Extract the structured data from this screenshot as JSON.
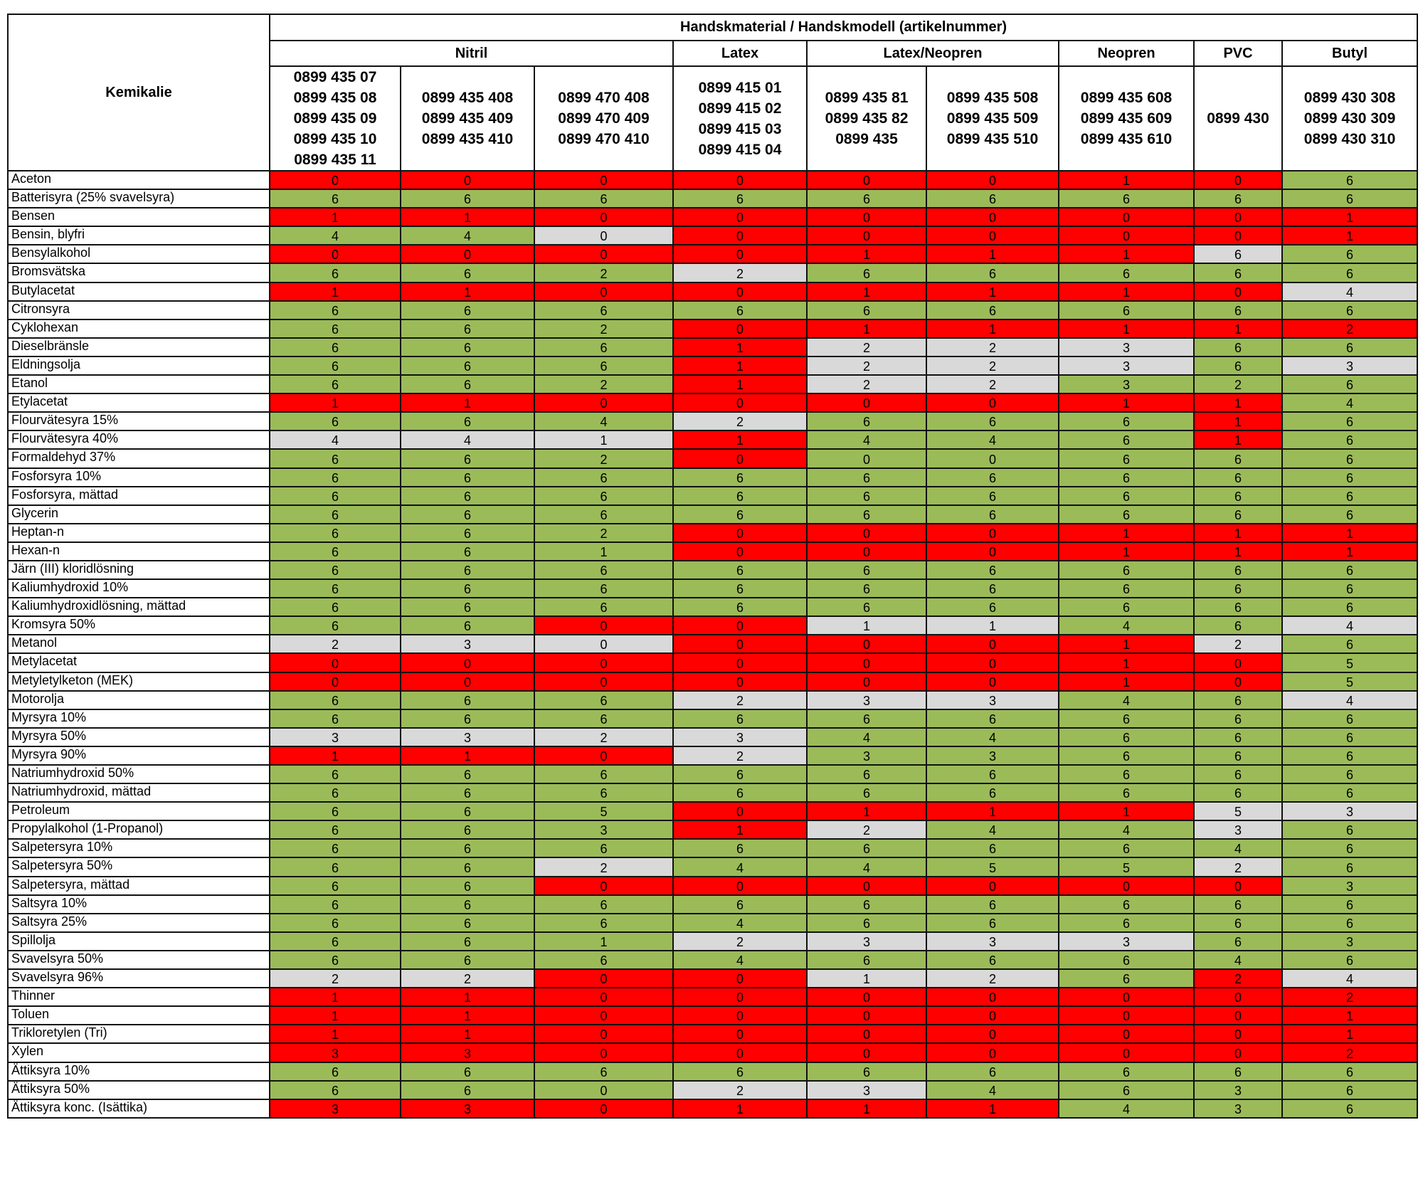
{
  "header": {
    "chemical_label": "Kemikalie",
    "group_title": "Handskmaterial / Handskmodell (artikelnummer)",
    "materials": [
      {
        "label": "Nitril",
        "span": 3
      },
      {
        "label": "Latex",
        "span": 1
      },
      {
        "label": "Latex/Neopren",
        "span": 2
      },
      {
        "label": "Neopren",
        "span": 1
      },
      {
        "label": "PVC",
        "span": 1
      },
      {
        "label": "Butyl",
        "span": 1
      }
    ],
    "article_numbers": [
      [
        "0899 435 07",
        "0899 435 08",
        "0899 435 09",
        "0899 435 10",
        "0899 435 11"
      ],
      [
        "0899 435 408",
        "0899 435 409",
        "0899 435 410"
      ],
      [
        "0899 470 408",
        "0899 470 409",
        "0899 470 410"
      ],
      [
        "0899 415 01",
        "0899 415 02",
        "0899 415 03",
        "0899 415 04"
      ],
      [
        "0899 435 81",
        "0899 435 82",
        "0899 435"
      ],
      [
        "0899 435 508",
        "0899 435 509",
        "0899 435 510"
      ],
      [
        "0899 435 608",
        "0899 435 609",
        "0899 435 610"
      ],
      [
        "0899 430"
      ],
      [
        "0899 430 308",
        "0899 430 309",
        "0899 430 310"
      ]
    ]
  },
  "colors": {
    "r": "#ff0000",
    "g": "#9bbb59",
    "w": "#d9d9d9"
  },
  "rows": [
    {
      "name": "Aceton",
      "values": [
        0,
        0,
        0,
        0,
        0,
        0,
        1,
        0,
        6
      ],
      "colors": "rrrrrrrrg"
    },
    {
      "name": "Batterisyra (25% svavelsyra)",
      "values": [
        6,
        6,
        6,
        6,
        6,
        6,
        6,
        6,
        6
      ],
      "colors": "ggggggggg"
    },
    {
      "name": "Bensen",
      "values": [
        1,
        1,
        0,
        0,
        0,
        0,
        0,
        0,
        1
      ],
      "colors": "rrrrrrrrr"
    },
    {
      "name": "Bensin, blyfri",
      "values": [
        4,
        4,
        0,
        0,
        0,
        0,
        0,
        0,
        1
      ],
      "colors": "ggwrrrrrr"
    },
    {
      "name": "Bensylalkohol",
      "values": [
        0,
        0,
        0,
        0,
        1,
        1,
        1,
        6,
        6
      ],
      "colors": "rrrrrrrwg"
    },
    {
      "name": "Bromsvätska",
      "values": [
        6,
        6,
        2,
        2,
        6,
        6,
        6,
        6,
        6
      ],
      "colors": "gggwggggg"
    },
    {
      "name": "Butylacetat",
      "values": [
        1,
        1,
        0,
        0,
        1,
        1,
        1,
        0,
        4
      ],
      "colors": "rrrrrrrrw"
    },
    {
      "name": "Citronsyra",
      "values": [
        6,
        6,
        6,
        6,
        6,
        6,
        6,
        6,
        6
      ],
      "colors": "ggggggggg"
    },
    {
      "name": "Cyklohexan",
      "values": [
        6,
        6,
        2,
        0,
        1,
        1,
        1,
        1,
        2
      ],
      "colors": "gggrrrrrr"
    },
    {
      "name": "Dieselbränsle",
      "values": [
        6,
        6,
        6,
        1,
        2,
        2,
        3,
        6,
        6
      ],
      "colors": "gggrwwwgg"
    },
    {
      "name": "Eldningsolja",
      "values": [
        6,
        6,
        6,
        1,
        2,
        2,
        3,
        6,
        3
      ],
      "colors": "gggrwwwgw"
    },
    {
      "name": "Etanol",
      "values": [
        6,
        6,
        2,
        1,
        2,
        2,
        3,
        2,
        6
      ],
      "colors": "gggrwwggg"
    },
    {
      "name": "Etylacetat",
      "values": [
        1,
        1,
        0,
        0,
        0,
        0,
        1,
        1,
        4
      ],
      "colors": "rrrrrrrrg"
    },
    {
      "name": "Flourvätesyra 15%",
      "values": [
        6,
        6,
        4,
        2,
        6,
        6,
        6,
        1,
        6
      ],
      "colors": "gggwgggrg"
    },
    {
      "name": "Flourvätesyra 40%",
      "values": [
        4,
        4,
        1,
        1,
        4,
        4,
        6,
        1,
        6
      ],
      "colors": "wwwrgggrg"
    },
    {
      "name": "Formaldehyd 37%",
      "values": [
        6,
        6,
        2,
        0,
        0,
        0,
        6,
        6,
        6
      ],
      "colors": "gggrggggg"
    },
    {
      "name": "Fosforsyra 10%",
      "values": [
        6,
        6,
        6,
        6,
        6,
        6,
        6,
        6,
        6
      ],
      "colors": "ggggggggg"
    },
    {
      "name": "Fosforsyra, mättad",
      "values": [
        6,
        6,
        6,
        6,
        6,
        6,
        6,
        6,
        6
      ],
      "colors": "ggggggggg"
    },
    {
      "name": "Glycerin",
      "values": [
        6,
        6,
        6,
        6,
        6,
        6,
        6,
        6,
        6
      ],
      "colors": "ggggggggg"
    },
    {
      "name": "Heptan-n",
      "values": [
        6,
        6,
        2,
        0,
        0,
        0,
        1,
        1,
        1
      ],
      "colors": "gggrrrrrr"
    },
    {
      "name": "Hexan-n",
      "values": [
        6,
        6,
        1,
        0,
        0,
        0,
        1,
        1,
        1
      ],
      "colors": "gggrrrrrr"
    },
    {
      "name": "Järn (III) kloridlösning",
      "values": [
        6,
        6,
        6,
        6,
        6,
        6,
        6,
        6,
        6
      ],
      "colors": "ggggggggg"
    },
    {
      "name": "Kaliumhydroxid 10%",
      "values": [
        6,
        6,
        6,
        6,
        6,
        6,
        6,
        6,
        6
      ],
      "colors": "ggggggggg"
    },
    {
      "name": "Kaliumhydroxidlösning, mättad",
      "values": [
        6,
        6,
        6,
        6,
        6,
        6,
        6,
        6,
        6
      ],
      "colors": "ggggggggg"
    },
    {
      "name": "Kromsyra 50%",
      "values": [
        6,
        6,
        0,
        0,
        1,
        1,
        4,
        6,
        4
      ],
      "colors": "ggrrwwggw"
    },
    {
      "name": "Metanol",
      "values": [
        2,
        3,
        0,
        0,
        0,
        0,
        1,
        2,
        6
      ],
      "colors": "wwwrrrrwg"
    },
    {
      "name": "Metylacetat",
      "values": [
        0,
        0,
        0,
        0,
        0,
        0,
        1,
        0,
        5
      ],
      "colors": "rrrrrrrrg"
    },
    {
      "name": "Metyletylketon (MEK)",
      "values": [
        0,
        0,
        0,
        0,
        0,
        0,
        1,
        0,
        5
      ],
      "colors": "rrrrrrrrg"
    },
    {
      "name": "Motorolja",
      "values": [
        6,
        6,
        6,
        2,
        3,
        3,
        4,
        6,
        4
      ],
      "colors": "gggwwwggw"
    },
    {
      "name": "Myrsyra 10%",
      "values": [
        6,
        6,
        6,
        6,
        6,
        6,
        6,
        6,
        6
      ],
      "colors": "ggggggggg"
    },
    {
      "name": "Myrsyra 50%",
      "values": [
        3,
        3,
        2,
        3,
        4,
        4,
        6,
        6,
        6
      ],
      "colors": "wwwwggggg"
    },
    {
      "name": "Myrsyra 90%",
      "values": [
        1,
        1,
        0,
        2,
        3,
        3,
        6,
        6,
        6
      ],
      "colors": "rrrwggggg"
    },
    {
      "name": "Natriumhydroxid 50%",
      "values": [
        6,
        6,
        6,
        6,
        6,
        6,
        6,
        6,
        6
      ],
      "colors": "ggggggggg"
    },
    {
      "name": "Natriumhydroxid, mättad",
      "values": [
        6,
        6,
        6,
        6,
        6,
        6,
        6,
        6,
        6
      ],
      "colors": "ggggggggg"
    },
    {
      "name": "Petroleum",
      "values": [
        6,
        6,
        5,
        0,
        1,
        1,
        1,
        5,
        3
      ],
      "colors": "gggrrrrww"
    },
    {
      "name": "Propylalkohol (1-Propanol)",
      "values": [
        6,
        6,
        3,
        1,
        2,
        4,
        4,
        3,
        6
      ],
      "colors": "gggrwggwg"
    },
    {
      "name": "Salpetersyra 10%",
      "values": [
        6,
        6,
        6,
        6,
        6,
        6,
        6,
        4,
        6
      ],
      "colors": "ggggggggg"
    },
    {
      "name": "Salpetersyra 50%",
      "values": [
        6,
        6,
        2,
        4,
        4,
        5,
        5,
        2,
        6
      ],
      "colors": "ggwggggwg"
    },
    {
      "name": "Salpetersyra, mättad",
      "values": [
        6,
        6,
        0,
        0,
        0,
        0,
        0,
        0,
        3
      ],
      "colors": "ggrrrrrrg"
    },
    {
      "name": "Saltsyra 10%",
      "values": [
        6,
        6,
        6,
        6,
        6,
        6,
        6,
        6,
        6
      ],
      "colors": "ggggggggg"
    },
    {
      "name": "Saltsyra 25%",
      "values": [
        6,
        6,
        6,
        4,
        6,
        6,
        6,
        6,
        6
      ],
      "colors": "ggggggggg"
    },
    {
      "name": "Spillolja",
      "values": [
        6,
        6,
        1,
        2,
        3,
        3,
        3,
        6,
        3
      ],
      "colors": "gggwwwwgg"
    },
    {
      "name": "Svavelsyra 50%",
      "values": [
        6,
        6,
        6,
        4,
        6,
        6,
        6,
        4,
        6
      ],
      "colors": "ggggggggg"
    },
    {
      "name": "Svavelsyra 96%",
      "values": [
        2,
        2,
        0,
        0,
        1,
        2,
        6,
        2,
        4
      ],
      "colors": "wwrrwwgrw"
    },
    {
      "name": "Thinner",
      "values": [
        1,
        1,
        0,
        0,
        0,
        0,
        0,
        0,
        2
      ],
      "colors": "rrrrrrrrr"
    },
    {
      "name": "Toluen",
      "values": [
        1,
        1,
        0,
        0,
        0,
        0,
        0,
        0,
        1
      ],
      "colors": "rrrrrrrrr"
    },
    {
      "name": "Trikloretylen (Tri)",
      "values": [
        1,
        1,
        0,
        0,
        0,
        0,
        0,
        0,
        1
      ],
      "colors": "rrrrrrrrr"
    },
    {
      "name": "Xylen",
      "values": [
        3,
        3,
        0,
        0,
        0,
        0,
        0,
        0,
        2
      ],
      "colors": "rrrrrrrrr"
    },
    {
      "name": "Ättiksyra 10%",
      "values": [
        6,
        6,
        6,
        6,
        6,
        6,
        6,
        6,
        6
      ],
      "colors": "ggggggggg"
    },
    {
      "name": "Ättiksyra 50%",
      "values": [
        6,
        6,
        0,
        2,
        3,
        4,
        6,
        3,
        6
      ],
      "colors": "gggwwgggg"
    },
    {
      "name": "Ättiksyra konc. (Isättika)",
      "values": [
        3,
        3,
        0,
        1,
        1,
        1,
        4,
        3,
        6
      ],
      "colors": "rrrrrrggg"
    }
  ]
}
